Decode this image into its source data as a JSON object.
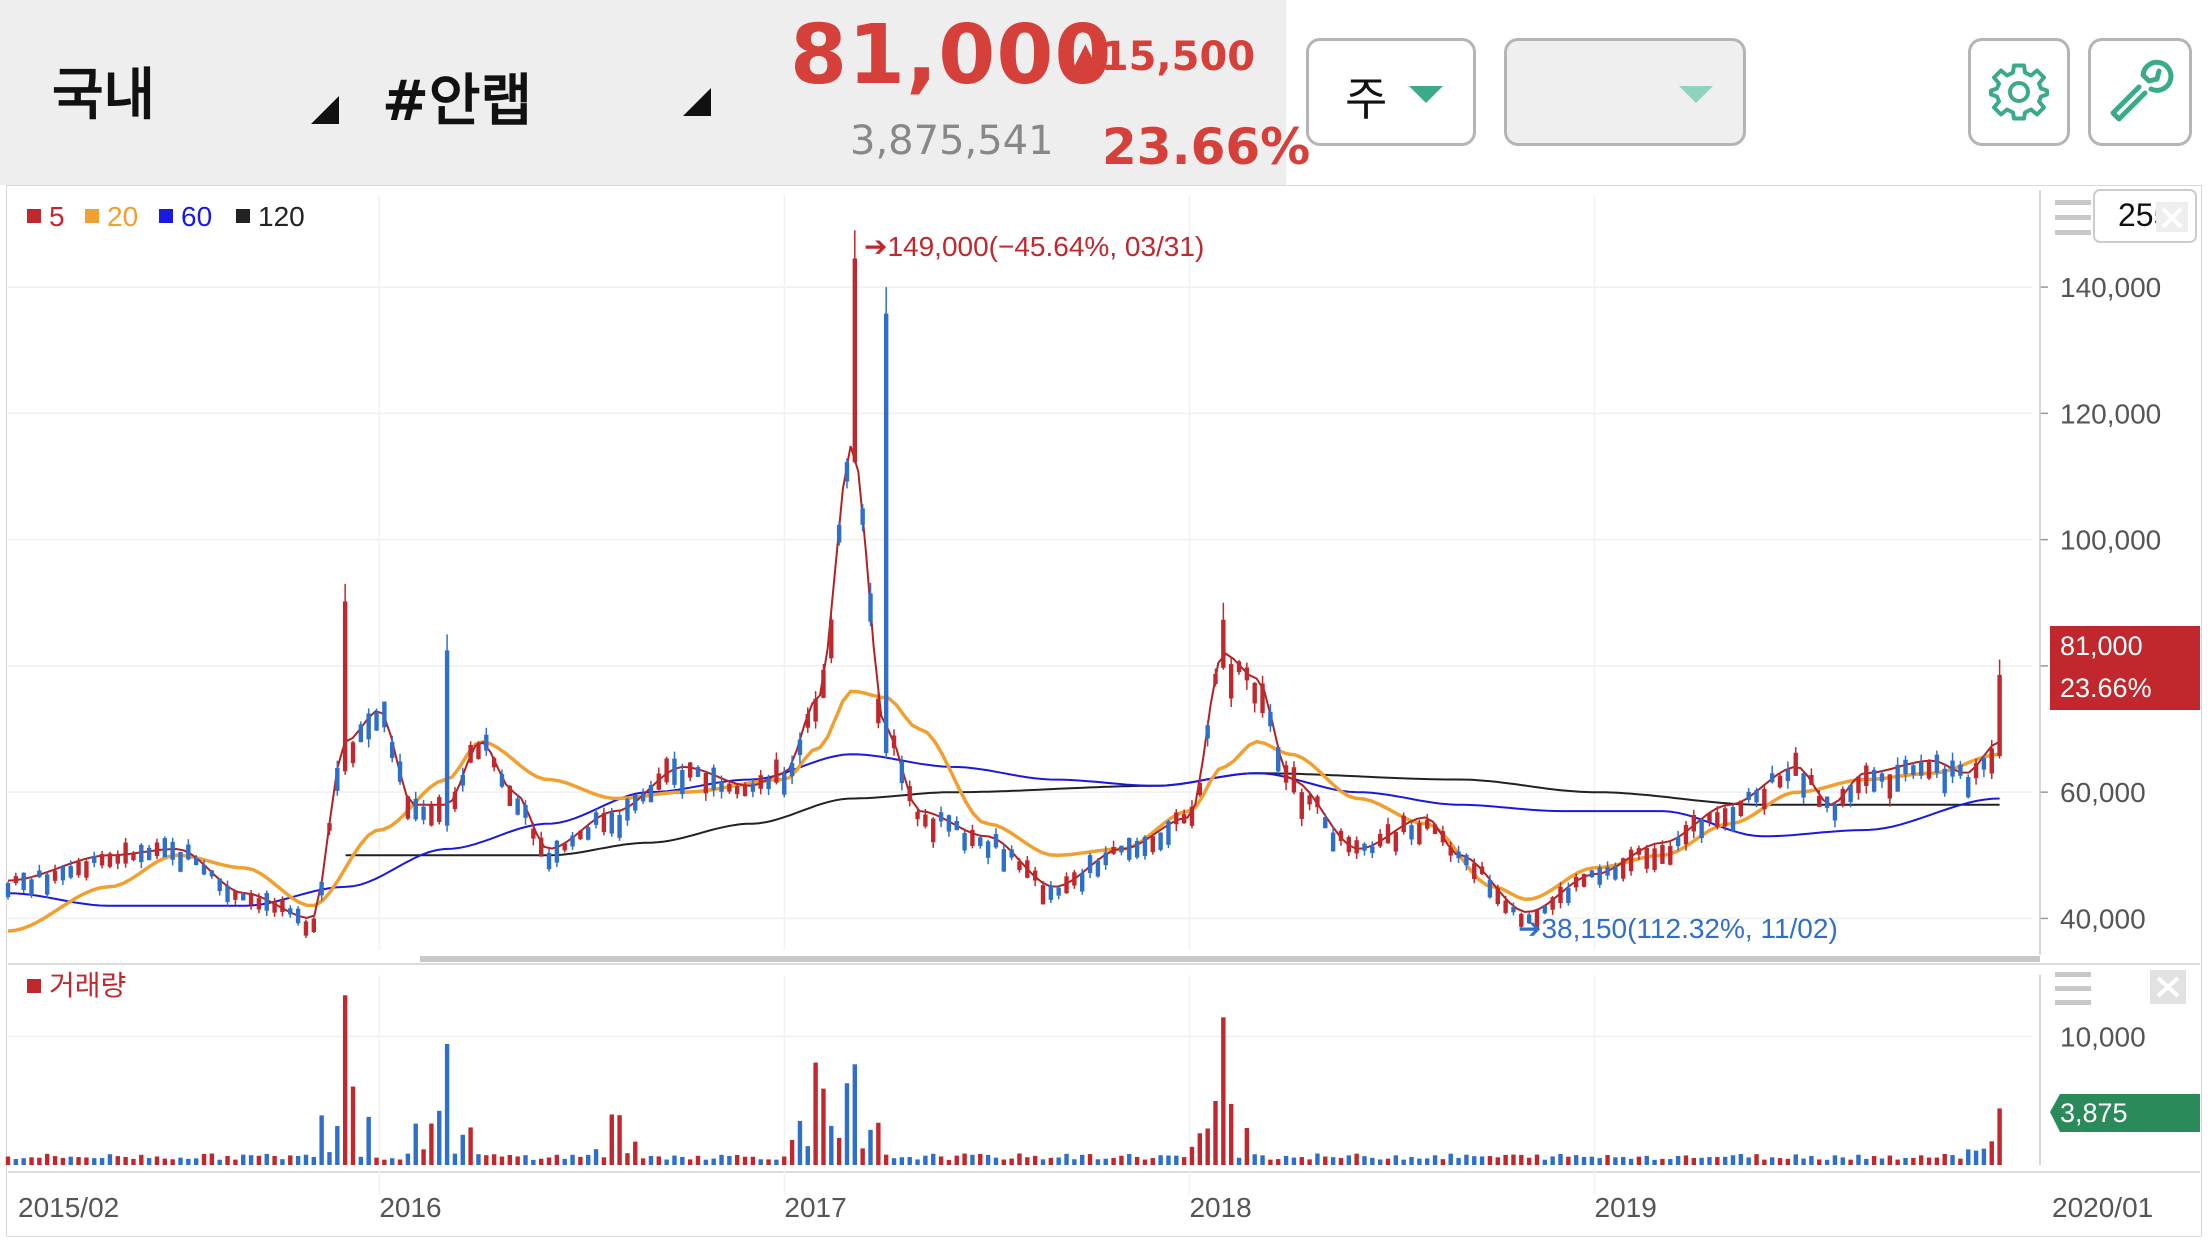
{
  "header": {
    "market_label": "국내",
    "stock_label": "#안랩",
    "price": "81,000",
    "change": "▲15,500",
    "volume": "3,875,541",
    "change_rate": "23.66%"
  },
  "controls": {
    "period_label": "주",
    "secondary_label": ""
  },
  "colors": {
    "up": "#c0282d",
    "down": "#2f6fc9",
    "ma5": "#b22222",
    "ma20": "#f0a030",
    "ma60": "#1a1adf",
    "ma120": "#222222",
    "price_tag": "#c0282d",
    "volume_tag": "#2a8a5a"
  },
  "icons": {
    "settings": "gear-icon",
    "tools": "wrench-icon",
    "menu": "hamburger-icon",
    "close": "close-icon"
  },
  "chart_data": [
    {
      "type": "candlestick",
      "legend": [
        {
          "label": "5",
          "color": "#c0282d"
        },
        {
          "label": "20",
          "color": "#f0a030"
        },
        {
          "label": "60",
          "color": "#1a1adf"
        },
        {
          "label": "120",
          "color": "#222222"
        }
      ],
      "visible_count": "255",
      "y_ticks": [
        "140,000",
        "120,000",
        "100,000",
        "80,000",
        "60,000",
        "40,000"
      ],
      "y_tick_values": [
        140000,
        120000,
        100000,
        80000,
        60000,
        40000
      ],
      "ylim": [
        35000,
        153000
      ],
      "x_tick_labels": [
        "2015/02",
        "2016",
        "2017",
        "2018",
        "2019",
        "2020/01"
      ],
      "x_tick_dates": [
        "2015-02",
        "2016-01",
        "2017-01",
        "2018-01",
        "2019-01",
        "2020-01"
      ],
      "current_price_label": "81,000",
      "current_rate_label": "23.66%",
      "annotations": [
        {
          "text": "149,000(−45.64%, 03/31)",
          "date": "2017-03",
          "value": 149000
        },
        {
          "text": "38,150(112.32%, 11/02)",
          "date": "2018-11",
          "value": 38150
        }
      ],
      "ma5": [
        [
          "2015-02",
          46000
        ],
        [
          "2015-05",
          50000
        ],
        [
          "2015-07",
          51000
        ],
        [
          "2015-09",
          44000
        ],
        [
          "2015-11",
          40000
        ],
        [
          "2015-12",
          68000
        ],
        [
          "2016-01",
          73000
        ],
        [
          "2016-02",
          58000
        ],
        [
          "2016-03",
          58000
        ],
        [
          "2016-04",
          68000
        ],
        [
          "2016-05",
          60000
        ],
        [
          "2016-06",
          51000
        ],
        [
          "2016-08",
          57000
        ],
        [
          "2016-10",
          64000
        ],
        [
          "2016-12",
          61000
        ],
        [
          "2017-01",
          63000
        ],
        [
          "2017-02",
          75000
        ],
        [
          "2017-03",
          115000
        ],
        [
          "2017-04",
          70000
        ],
        [
          "2017-05",
          57000
        ],
        [
          "2017-07",
          53000
        ],
        [
          "2017-09",
          45000
        ],
        [
          "2017-11",
          51000
        ],
        [
          "2018-01",
          56000
        ],
        [
          "2018-02",
          82000
        ],
        [
          "2018-03",
          78000
        ],
        [
          "2018-04",
          62000
        ],
        [
          "2018-06",
          51000
        ],
        [
          "2018-08",
          56000
        ],
        [
          "2018-09",
          50000
        ],
        [
          "2018-11",
          41000
        ],
        [
          "2019-01",
          47000
        ],
        [
          "2019-03",
          52000
        ],
        [
          "2019-05",
          58000
        ],
        [
          "2019-07",
          64000
        ],
        [
          "2019-08",
          58000
        ],
        [
          "2019-09",
          63000
        ],
        [
          "2019-11",
          65000
        ],
        [
          "2019-12",
          63000
        ],
        [
          "2020-01",
          68000
        ]
      ],
      "ma20": [
        [
          "2015-02",
          38000
        ],
        [
          "2015-05",
          45000
        ],
        [
          "2015-07",
          50000
        ],
        [
          "2015-09",
          48000
        ],
        [
          "2015-11",
          42000
        ],
        [
          "2016-01",
          54000
        ],
        [
          "2016-03",
          62000
        ],
        [
          "2016-04",
          68000
        ],
        [
          "2016-06",
          62000
        ],
        [
          "2016-08",
          59000
        ],
        [
          "2016-10",
          60000
        ],
        [
          "2017-01",
          62000
        ],
        [
          "2017-02",
          67000
        ],
        [
          "2017-03",
          76000
        ],
        [
          "2017-04",
          75000
        ],
        [
          "2017-05",
          70000
        ],
        [
          "2017-07",
          55000
        ],
        [
          "2017-09",
          50000
        ],
        [
          "2017-11",
          51000
        ],
        [
          "2018-01",
          57000
        ],
        [
          "2018-02",
          64000
        ],
        [
          "2018-03",
          68000
        ],
        [
          "2018-04",
          66000
        ],
        [
          "2018-06",
          59000
        ],
        [
          "2018-08",
          55000
        ],
        [
          "2018-10",
          45000
        ],
        [
          "2018-11",
          43000
        ],
        [
          "2019-01",
          48000
        ],
        [
          "2019-03",
          50000
        ],
        [
          "2019-05",
          55000
        ],
        [
          "2019-07",
          60000
        ],
        [
          "2019-09",
          62000
        ],
        [
          "2019-11",
          63000
        ],
        [
          "2020-01",
          66000
        ]
      ],
      "ma60": [
        [
          "2015-02",
          44000
        ],
        [
          "2015-05",
          42000
        ],
        [
          "2015-09",
          42000
        ],
        [
          "2015-12",
          45000
        ],
        [
          "2016-03",
          51000
        ],
        [
          "2016-06",
          55000
        ],
        [
          "2016-09",
          60000
        ],
        [
          "2016-12",
          62000
        ],
        [
          "2017-03",
          66000
        ],
        [
          "2017-06",
          64000
        ],
        [
          "2017-09",
          62000
        ],
        [
          "2017-12",
          61000
        ],
        [
          "2018-03",
          63000
        ],
        [
          "2018-06",
          60000
        ],
        [
          "2018-09",
          58000
        ],
        [
          "2018-12",
          57000
        ],
        [
          "2019-03",
          57000
        ],
        [
          "2019-06",
          53000
        ],
        [
          "2019-09",
          54000
        ],
        [
          "2020-01",
          59000
        ]
      ],
      "ma120": [
        [
          "2015-12",
          50000
        ],
        [
          "2016-06",
          50000
        ],
        [
          "2016-09",
          52000
        ],
        [
          "2016-12",
          55000
        ],
        [
          "2017-03",
          59000
        ],
        [
          "2017-06",
          60000
        ],
        [
          "2017-12",
          61000
        ],
        [
          "2018-03",
          63000
        ],
        [
          "2018-09",
          62000
        ],
        [
          "2019-01",
          60000
        ],
        [
          "2019-06",
          58000
        ],
        [
          "2020-01",
          58000
        ]
      ],
      "candle_highlights": [
        {
          "date": "2015-12",
          "value": 93000,
          "direction": "up"
        },
        {
          "date": "2016-03",
          "value": 85000,
          "direction": "down"
        },
        {
          "date": "2017-03",
          "value": 149000,
          "direction": "up"
        },
        {
          "date": "2017-04",
          "value": 140000,
          "direction": "down"
        },
        {
          "date": "2018-02",
          "value": 90000,
          "direction": "up"
        },
        {
          "date": "2018-11",
          "value": 38150,
          "direction": "down"
        },
        {
          "date": "2020-01",
          "value": 81000,
          "direction": "up"
        }
      ]
    },
    {
      "type": "bar",
      "legend": [
        {
          "label": "거래량",
          "color": "#c0282d"
        }
      ],
      "y_ticks": [
        "10,000"
      ],
      "y_tick_values": [
        10000
      ],
      "ylim": [
        0,
        14000
      ],
      "current_volume_label": "3,875",
      "volume_spikes": [
        {
          "date": "2015-12",
          "value": 13600,
          "direction": "up"
        },
        {
          "date": "2016-03",
          "value": 9600,
          "direction": "down"
        },
        {
          "date": "2016-08",
          "value": 5500,
          "direction": "up"
        },
        {
          "date": "2017-02",
          "value": 9800,
          "direction": "up"
        },
        {
          "date": "2017-03",
          "value": 10000,
          "direction": "down"
        },
        {
          "date": "2018-02",
          "value": 11600,
          "direction": "up"
        },
        {
          "date": "2020-01",
          "value": 4400,
          "direction": "up"
        }
      ]
    }
  ]
}
